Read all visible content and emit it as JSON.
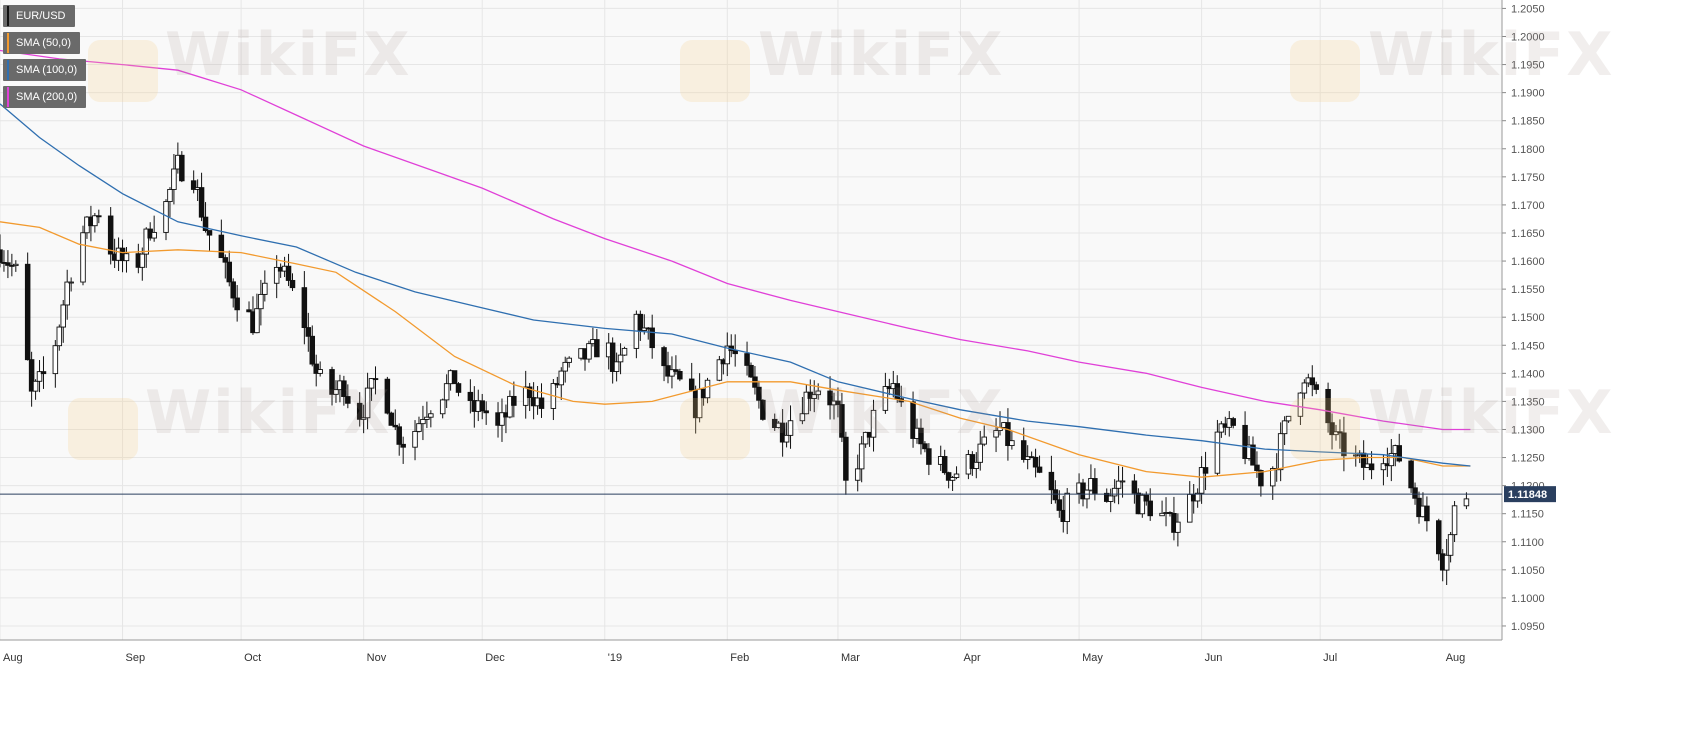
{
  "chart_data": {
    "type": "candlestick",
    "symbol": "EUR/USD",
    "ylim": [
      1.0925,
      1.2065
    ],
    "y_ticks": [
      "1.2050",
      "1.2000",
      "1.1950",
      "1.1900",
      "1.1850",
      "1.1800",
      "1.1750",
      "1.1700",
      "1.1650",
      "1.1600",
      "1.1550",
      "1.1500",
      "1.1450",
      "1.1400",
      "1.1350",
      "1.1300",
      "1.1250",
      "1.1200",
      "1.1150",
      "1.1100",
      "1.1050",
      "1.1000",
      "1.0950"
    ],
    "x_ticks": [
      {
        "label": "Aug",
        "day": 0
      },
      {
        "label": "Sep",
        "day": 31
      },
      {
        "label": "Oct",
        "day": 61
      },
      {
        "label": "Nov",
        "day": 92
      },
      {
        "label": "Dec",
        "day": 122
      },
      {
        "label": "'19",
        "day": 153
      },
      {
        "label": "Feb",
        "day": 184
      },
      {
        "label": "Mar",
        "day": 212
      },
      {
        "label": "Apr",
        "day": 243
      },
      {
        "label": "May",
        "day": 273
      },
      {
        "label": "Jun",
        "day": 304
      },
      {
        "label": "Jul",
        "day": 334
      },
      {
        "label": "Aug",
        "day": 365
      }
    ],
    "last_price": 1.11848,
    "last_price_label": "1.11848",
    "series": [
      {
        "name": "SMA (50,0)",
        "color": "#f29a2e",
        "points": [
          [
            0,
            1.167
          ],
          [
            10,
            1.166
          ],
          [
            20,
            1.163
          ],
          [
            31,
            1.1615
          ],
          [
            45,
            1.162
          ],
          [
            61,
            1.1615
          ],
          [
            75,
            1.1595
          ],
          [
            85,
            1.158
          ],
          [
            100,
            1.151
          ],
          [
            115,
            1.143
          ],
          [
            130,
            1.138
          ],
          [
            145,
            1.135
          ],
          [
            153,
            1.1345
          ],
          [
            165,
            1.135
          ],
          [
            184,
            1.1385
          ],
          [
            200,
            1.1385
          ],
          [
            212,
            1.137
          ],
          [
            230,
            1.135
          ],
          [
            243,
            1.132
          ],
          [
            255,
            1.13
          ],
          [
            273,
            1.1255
          ],
          [
            290,
            1.1225
          ],
          [
            304,
            1.1215
          ],
          [
            320,
            1.1225
          ],
          [
            334,
            1.1245
          ],
          [
            345,
            1.125
          ],
          [
            355,
            1.125
          ],
          [
            365,
            1.1235
          ],
          [
            372,
            1.1235
          ]
        ]
      },
      {
        "name": "SMA (100,0)",
        "color": "#2f6fb0",
        "points": [
          [
            0,
            1.188
          ],
          [
            10,
            1.182
          ],
          [
            20,
            1.177
          ],
          [
            31,
            1.172
          ],
          [
            45,
            1.167
          ],
          [
            61,
            1.1645
          ],
          [
            75,
            1.1625
          ],
          [
            90,
            1.158
          ],
          [
            105,
            1.1545
          ],
          [
            120,
            1.152
          ],
          [
            135,
            1.1495
          ],
          [
            153,
            1.148
          ],
          [
            170,
            1.147
          ],
          [
            184,
            1.1445
          ],
          [
            200,
            1.142
          ],
          [
            212,
            1.1385
          ],
          [
            230,
            1.1355
          ],
          [
            243,
            1.1335
          ],
          [
            260,
            1.1315
          ],
          [
            273,
            1.1305
          ],
          [
            290,
            1.129
          ],
          [
            304,
            1.128
          ],
          [
            320,
            1.1265
          ],
          [
            334,
            1.126
          ],
          [
            350,
            1.1255
          ],
          [
            365,
            1.124
          ],
          [
            372,
            1.1235
          ]
        ]
      },
      {
        "name": "SMA (200,0)",
        "color": "#e040d8",
        "points": [
          [
            0,
            1.1975
          ],
          [
            15,
            1.196
          ],
          [
            31,
            1.195
          ],
          [
            45,
            1.194
          ],
          [
            61,
            1.1905
          ],
          [
            75,
            1.186
          ],
          [
            92,
            1.1805
          ],
          [
            110,
            1.176
          ],
          [
            122,
            1.173
          ],
          [
            140,
            1.1675
          ],
          [
            153,
            1.164
          ],
          [
            170,
            1.16
          ],
          [
            184,
            1.156
          ],
          [
            200,
            1.153
          ],
          [
            212,
            1.151
          ],
          [
            230,
            1.148
          ],
          [
            243,
            1.146
          ],
          [
            260,
            1.144
          ],
          [
            273,
            1.142
          ],
          [
            290,
            1.14
          ],
          [
            304,
            1.1375
          ],
          [
            320,
            1.135
          ],
          [
            334,
            1.1335
          ],
          [
            350,
            1.1315
          ],
          [
            365,
            1.13
          ],
          [
            372,
            1.13
          ]
        ]
      }
    ],
    "close_path": [
      [
        0,
        1.162
      ],
      [
        4,
        1.158
      ],
      [
        8,
        1.136
      ],
      [
        13,
        1.142
      ],
      [
        17,
        1.156
      ],
      [
        21,
        1.165
      ],
      [
        25,
        1.169
      ],
      [
        28,
        1.162
      ],
      [
        31,
        1.16
      ],
      [
        34,
        1.158
      ],
      [
        38,
        1.166
      ],
      [
        42,
        1.17
      ],
      [
        45,
        1.177
      ],
      [
        49,
        1.175
      ],
      [
        52,
        1.166
      ],
      [
        55,
        1.162
      ],
      [
        58,
        1.156
      ],
      [
        61,
        1.152
      ],
      [
        64,
        1.149
      ],
      [
        67,
        1.154
      ],
      [
        70,
        1.16
      ],
      [
        73,
        1.156
      ],
      [
        77,
        1.149
      ],
      [
        80,
        1.14
      ],
      [
        83,
        1.136
      ],
      [
        87,
        1.138
      ],
      [
        90,
        1.132
      ],
      [
        92,
        1.134
      ],
      [
        96,
        1.14
      ],
      [
        100,
        1.13
      ],
      [
        103,
        1.127
      ],
      [
        107,
        1.133
      ],
      [
        111,
        1.136
      ],
      [
        115,
        1.139
      ],
      [
        118,
        1.133
      ],
      [
        122,
        1.134
      ],
      [
        126,
        1.13
      ],
      [
        130,
        1.135
      ],
      [
        134,
        1.137
      ],
      [
        138,
        1.133
      ],
      [
        142,
        1.14
      ],
      [
        146,
        1.142
      ],
      [
        150,
        1.144
      ],
      [
        153,
        1.146
      ],
      [
        156,
        1.14
      ],
      [
        159,
        1.146
      ],
      [
        161,
        1.15
      ],
      [
        165,
        1.145
      ],
      [
        168,
        1.14
      ],
      [
        172,
        1.138
      ],
      [
        176,
        1.134
      ],
      [
        180,
        1.14
      ],
      [
        184,
        1.145
      ],
      [
        187,
        1.142
      ],
      [
        190,
        1.138
      ],
      [
        194,
        1.132
      ],
      [
        198,
        1.13
      ],
      [
        201,
        1.133
      ],
      [
        205,
        1.137
      ],
      [
        208,
        1.138
      ],
      [
        212,
        1.133
      ],
      [
        214,
        1.12
      ],
      [
        218,
        1.126
      ],
      [
        222,
        1.134
      ],
      [
        226,
        1.138
      ],
      [
        229,
        1.132
      ],
      [
        233,
        1.127
      ],
      [
        237,
        1.124
      ],
      [
        241,
        1.122
      ],
      [
        245,
        1.124
      ],
      [
        249,
        1.127
      ],
      [
        253,
        1.13
      ],
      [
        257,
        1.126
      ],
      [
        261,
        1.123
      ],
      [
        265,
        1.12
      ],
      [
        268,
        1.115
      ],
      [
        272,
        1.118
      ],
      [
        276,
        1.12
      ],
      [
        280,
        1.118
      ],
      [
        284,
        1.121
      ],
      [
        288,
        1.117
      ],
      [
        292,
        1.116
      ],
      [
        296,
        1.113
      ],
      [
        300,
        1.116
      ],
      [
        304,
        1.122
      ],
      [
        308,
        1.129
      ],
      [
        312,
        1.13
      ],
      [
        316,
        1.125
      ],
      [
        320,
        1.12
      ],
      [
        323,
        1.125
      ],
      [
        327,
        1.135
      ],
      [
        330,
        1.14
      ],
      [
        334,
        1.134
      ],
      [
        338,
        1.128
      ],
      [
        342,
        1.125
      ],
      [
        346,
        1.123
      ],
      [
        350,
        1.126
      ],
      [
        354,
        1.125
      ],
      [
        357,
        1.12
      ],
      [
        360,
        1.115
      ],
      [
        363,
        1.112
      ],
      [
        365,
        1.107
      ],
      [
        367,
        1.111
      ],
      [
        369,
        1.12
      ],
      [
        371,
        1.1185
      ]
    ]
  }
}
